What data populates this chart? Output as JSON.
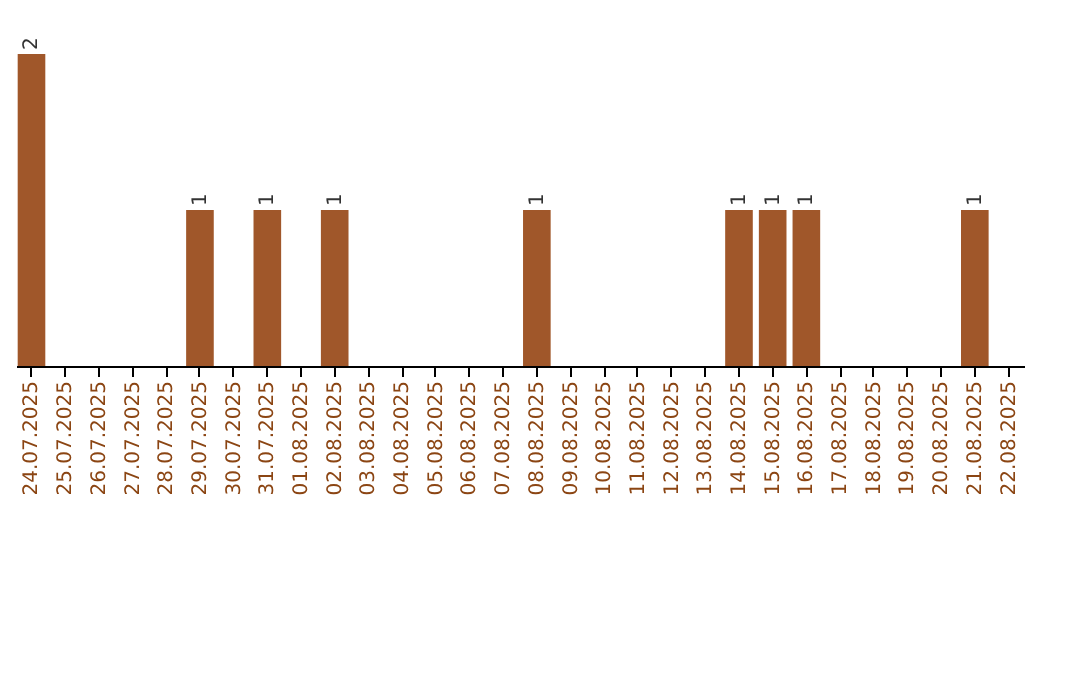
{
  "chart_data": {
    "type": "bar",
    "categories": [
      "24.07.2025",
      "25.07.2025",
      "26.07.2025",
      "27.07.2025",
      "28.07.2025",
      "29.07.2025",
      "30.07.2025",
      "31.07.2025",
      "01.08.2025",
      "02.08.2025",
      "03.08.2025",
      "04.08.2025",
      "05.08.2025",
      "06.08.2025",
      "07.08.2025",
      "08.08.2025",
      "09.08.2025",
      "10.08.2025",
      "11.08.2025",
      "12.08.2025",
      "13.08.2025",
      "14.08.2025",
      "15.08.2025",
      "16.08.2025",
      "17.08.2025",
      "18.08.2025",
      "19.08.2025",
      "20.08.2025",
      "21.08.2025",
      "22.08.2025"
    ],
    "values": [
      2,
      0,
      0,
      0,
      0,
      1,
      0,
      1,
      0,
      1,
      0,
      0,
      0,
      0,
      0,
      1,
      0,
      0,
      0,
      0,
      0,
      1,
      1,
      1,
      0,
      0,
      0,
      0,
      1,
      0
    ],
    "value_labels": [
      "2",
      null,
      null,
      null,
      null,
      "1",
      null,
      "1",
      null,
      "1",
      null,
      null,
      null,
      null,
      null,
      "1",
      null,
      null,
      null,
      null,
      null,
      "1",
      "1",
      "1",
      null,
      null,
      null,
      null,
      "1",
      null
    ],
    "color": "#a0572a",
    "grid": false,
    "tick_labels": "x"
  }
}
